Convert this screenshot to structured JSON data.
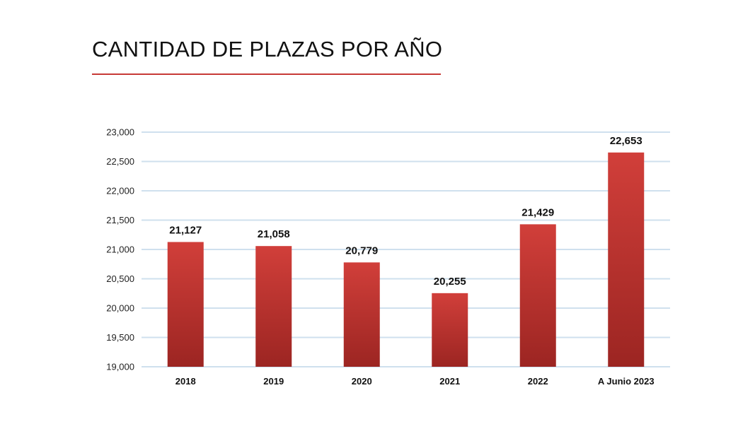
{
  "page": {
    "title": "CANTIDAD DE PLAZAS POR AÑO",
    "accent_color": "#c73a36"
  },
  "chart_data": {
    "type": "bar",
    "title": "",
    "xlabel": "",
    "ylabel": "",
    "categories": [
      "2018",
      "2019",
      "2020",
      "2021",
      "2022",
      "A Junio 2023"
    ],
    "values": [
      21127,
      21058,
      20779,
      20255,
      21429,
      22653
    ],
    "value_labels": [
      "21,127",
      "21,058",
      "20,779",
      "20,255",
      "21,429",
      "22,653"
    ],
    "ylim": [
      19000,
      23000
    ],
    "yticks": [
      19000,
      19500,
      20000,
      20500,
      21000,
      21500,
      22000,
      22500,
      23000
    ],
    "ytick_labels": [
      "19,000",
      "19,500",
      "20,000",
      "20,500",
      "21,000",
      "21,500",
      "22,000",
      "22,500",
      "23,000"
    ],
    "grid": true,
    "legend": "none",
    "bar_color_top": "#d13f3a",
    "bar_color_bottom": "#9c2522",
    "grid_color": "#cfe0ee"
  }
}
